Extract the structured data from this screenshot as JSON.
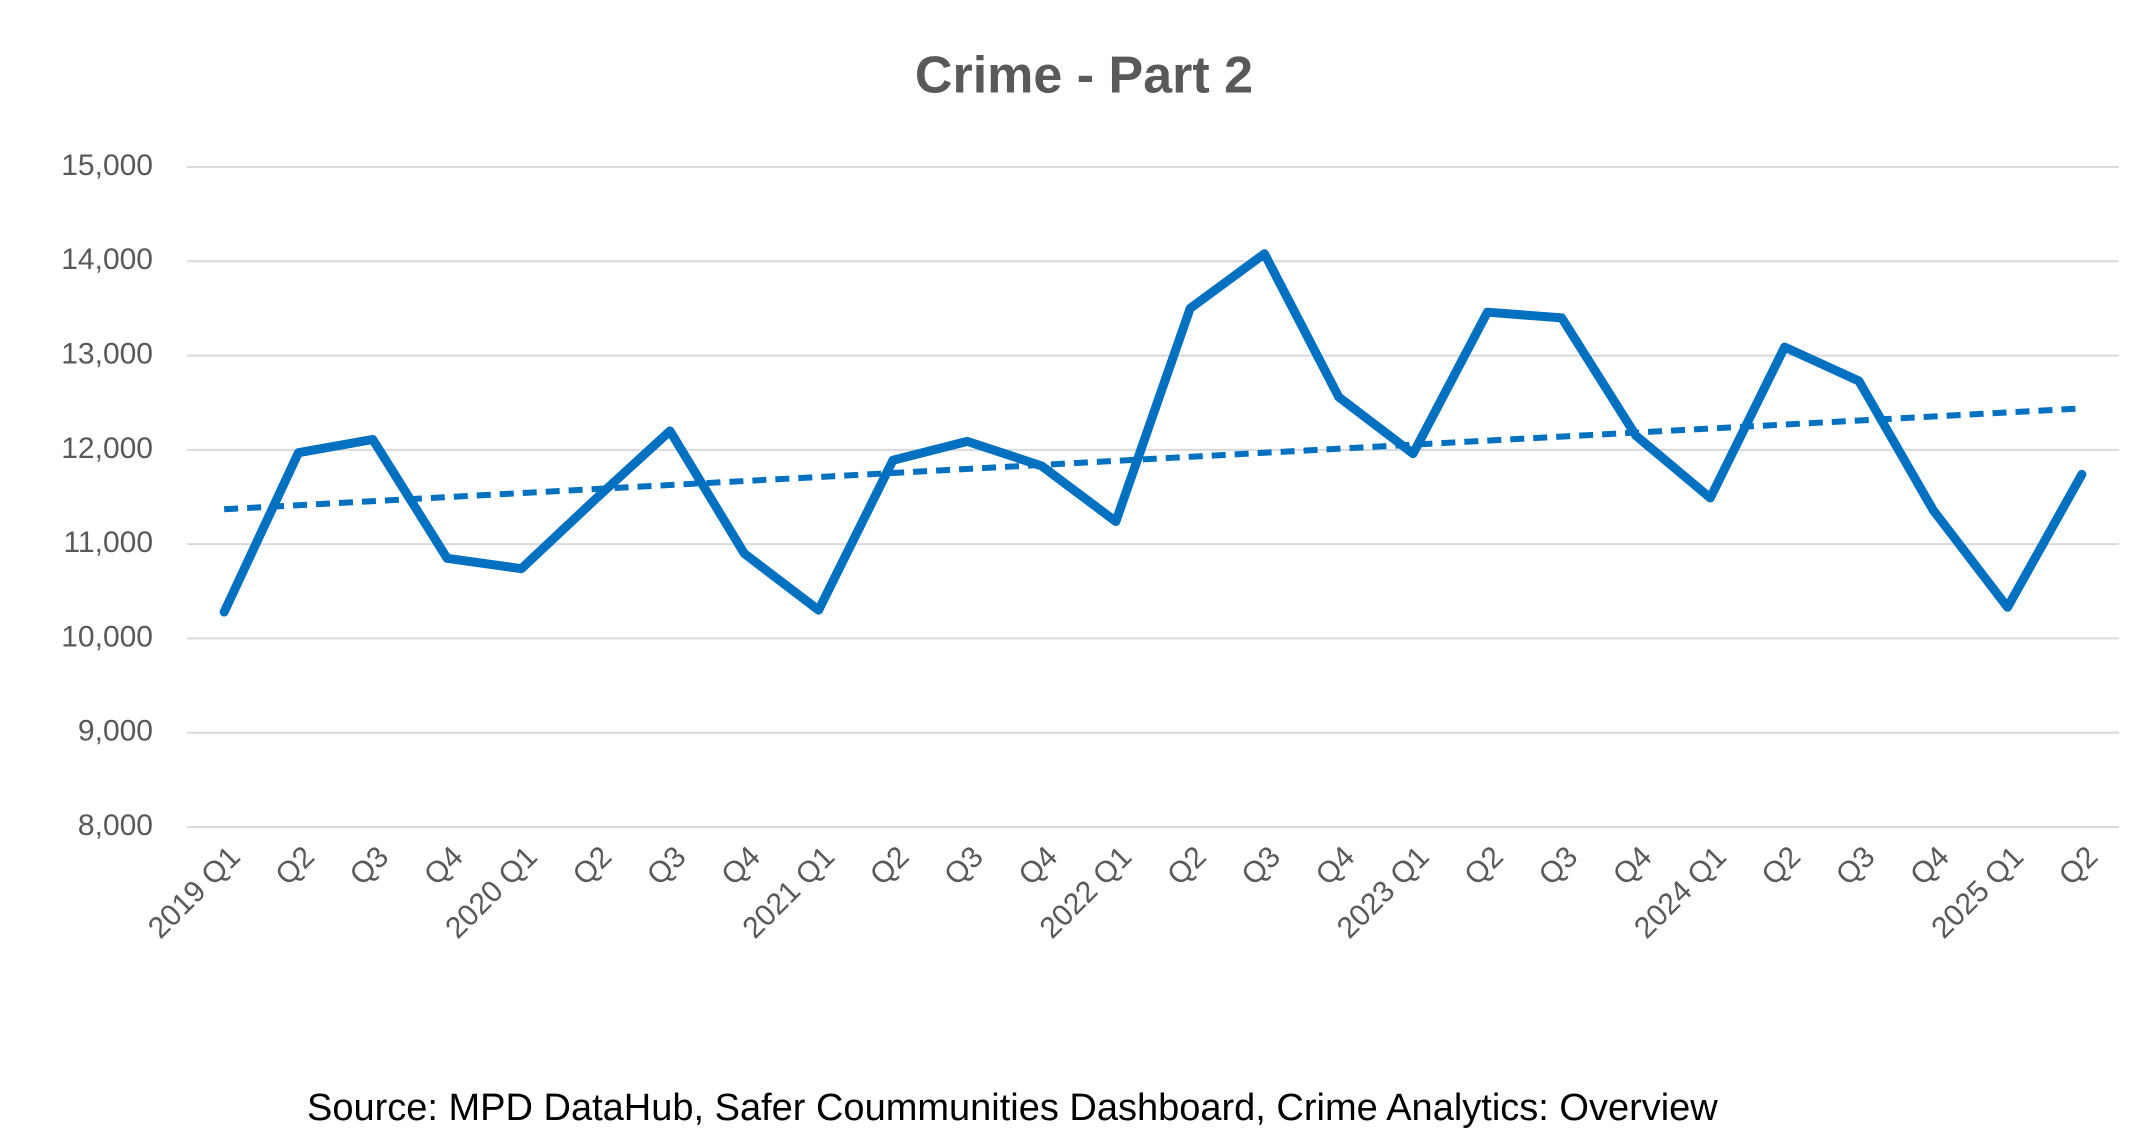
{
  "chart_data": {
    "type": "line",
    "title": "Crime - Part 2",
    "categories": [
      "2019 Q1",
      "Q2",
      "Q3",
      "Q4",
      "2020 Q1",
      "Q2",
      "Q3",
      "Q4",
      "2021 Q1",
      "Q2",
      "Q3",
      "Q4",
      "2022 Q1",
      "Q2",
      "Q3",
      "Q4",
      "2023 Q1",
      "Q2",
      "Q3",
      "Q4",
      "2024 Q1",
      "Q2",
      "Q3",
      "Q4",
      "2025 Q1",
      "Q2"
    ],
    "series": [
      {
        "color": "#0070c0",
        "values": [
          10280,
          11970,
          12110,
          10850,
          10740,
          11480,
          12200,
          10900,
          10300,
          11890,
          12090,
          11830,
          11240,
          13500,
          14080,
          12560,
          11960,
          13460,
          13400,
          12150,
          11490,
          13090,
          12730,
          11360,
          10330,
          11740
        ]
      }
    ],
    "trendline": {
      "color": "#0070c0",
      "style": "dashed",
      "values": [
        11370,
        12440
      ]
    },
    "ylim": [
      8000,
      15000
    ],
    "yticks": [
      {
        "value": 8000,
        "label": "8,000"
      },
      {
        "value": 9000,
        "label": "9,000"
      },
      {
        "value": 10000,
        "label": "10,000"
      },
      {
        "value": 11000,
        "label": "11,000"
      },
      {
        "value": 12000,
        "label": "12,000"
      },
      {
        "value": 13000,
        "label": "13,000"
      },
      {
        "value": 14000,
        "label": "14,000"
      },
      {
        "value": 15000,
        "label": "15,000"
      }
    ],
    "grid": true,
    "source": "Source: MPD DataHub, Safer Coummunities Dashboard,  Crime Analytics: Overview"
  }
}
